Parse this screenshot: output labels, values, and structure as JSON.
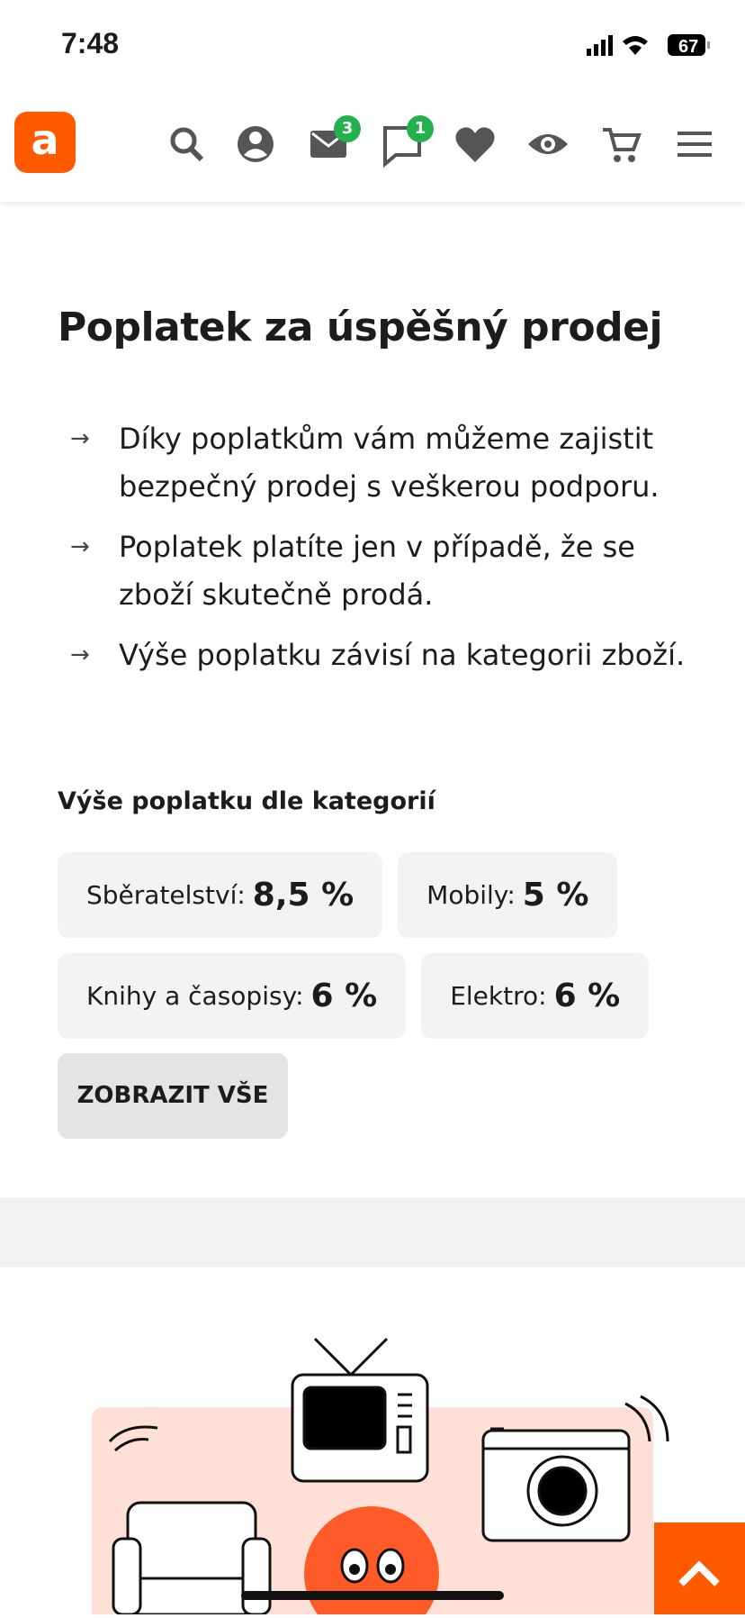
{
  "status": {
    "time": "7:48",
    "battery": "67"
  },
  "header": {
    "logo": "a",
    "mail_badge": "3",
    "chat_badge": "1"
  },
  "title": "Poplatek za úspěšný prodej",
  "bullets": [
    "Díky poplatkům vám můžeme zajistit bezpečný prodej s veškerou podporu.",
    "Poplatek platíte jen v případě, že se zboží skutečně prodá.",
    "Výše poplatku závisí na kategorii zboží."
  ],
  "fees": {
    "heading": "Výše poplatku dle kategorií",
    "items": [
      {
        "label": "Sběratelství:",
        "value": "8,5 %"
      },
      {
        "label": "Mobily:",
        "value": "5 %"
      },
      {
        "label": "Knihy a časopisy:",
        "value": "6 %"
      },
      {
        "label": "Elektro:",
        "value": "6 %"
      }
    ],
    "button": "ZOBRAZIT VŠE"
  }
}
